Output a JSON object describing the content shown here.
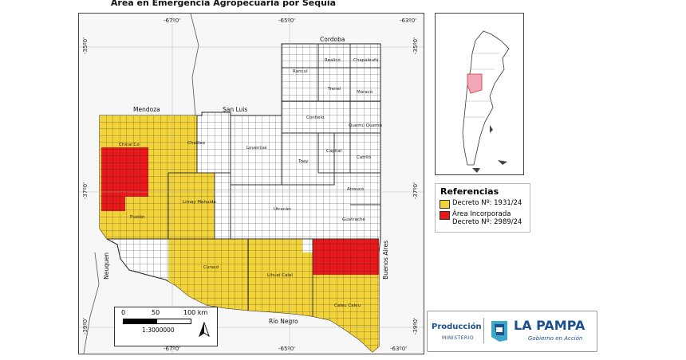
{
  "title": "Área en Emergencia Agropecuaria por Sequía",
  "colors": {
    "emergency": "#f2d33a",
    "incorporated": "#e8191b",
    "grid_line": "#222222",
    "province_fill": "#ffffff",
    "outside_fill": "#f7f7f7",
    "inset_highlight": "#f2a8b8"
  },
  "map": {
    "lon_ticks": [
      "-67º0'",
      "-65º0'",
      "-63º0'"
    ],
    "lat_ticks": [
      "-35º0'",
      "-37º0'",
      "-39º0'"
    ],
    "neighbors": [
      "Mendoza",
      "San Luis",
      "Cordoba",
      "Neuquen",
      "Río Negro",
      "Buenos Aires"
    ],
    "departments": [
      "Realicó",
      "Chapaleufú",
      "Rancul",
      "Trenel",
      "Maracó",
      "Conhelo",
      "Quemú Quemú",
      "Chical Co",
      "Chalileo",
      "Loventué",
      "Capital",
      "Catriló",
      "Toay",
      "Atreucó",
      "Limay Mahuida",
      "Utracán",
      "Guatraché",
      "Puelén",
      "Curacó",
      "Lihuel Calel",
      "Caleu Caleu"
    ],
    "scale": {
      "labels": [
        "0",
        "50",
        "100 km"
      ],
      "ratio": "1:3000000"
    },
    "north_arrow": "north-arrow-icon"
  },
  "legend": {
    "title": "Referencias",
    "items": [
      {
        "label": "Decreto Nº: 1931/24",
        "color": "#f2d33a"
      },
      {
        "label": "Área Incorporada\nDecreto Nº: 2989/24",
        "color": "#e8191b"
      }
    ]
  },
  "logo": {
    "produccion": "Producción",
    "ministerio": "MINISTERIO",
    "brand": "LA PAMPA",
    "tagline": "Gobierno en Acción"
  }
}
